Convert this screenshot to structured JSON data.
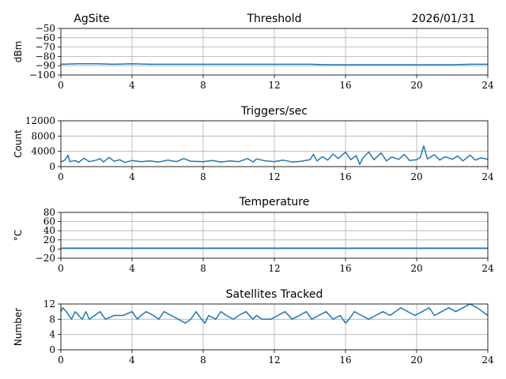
{
  "header": {
    "site": "AgSite",
    "date": "2026/01/31"
  },
  "colors": {
    "series": "#1f77b4",
    "grid": "#b0b0b0"
  },
  "chart_data": [
    {
      "type": "line",
      "title": "Threshold",
      "ylabel": "dBm",
      "xlim": [
        0,
        24
      ],
      "ylim": [
        -100,
        -50
      ],
      "xticks": [
        0,
        4,
        8,
        12,
        16,
        20,
        24
      ],
      "yticks": [
        -100,
        -90,
        -80,
        -70,
        -60,
        -50
      ],
      "ytick_labels": [
        "−100",
        "−90",
        "−80",
        "−70",
        "−60",
        "−50"
      ],
      "grid": true,
      "series": [
        {
          "x": [
            0,
            1,
            2,
            3,
            4,
            5,
            6,
            7,
            8,
            9,
            10,
            11,
            12,
            13,
            14,
            15,
            16,
            17,
            18,
            19,
            20,
            21,
            22,
            23,
            24
          ],
          "values": [
            -88.5,
            -88,
            -88,
            -88.5,
            -88,
            -88.5,
            -88.5,
            -88.5,
            -88.5,
            -88.5,
            -88.5,
            -88.5,
            -88.5,
            -88.5,
            -88.5,
            -89,
            -89,
            -89,
            -89,
            -89,
            -89,
            -89,
            -89,
            -88.5,
            -88.5
          ]
        }
      ]
    },
    {
      "type": "line",
      "title": "Triggers/sec",
      "ylabel": "Count",
      "xlim": [
        0,
        24
      ],
      "ylim": [
        0,
        12000
      ],
      "xticks": [
        0,
        4,
        8,
        12,
        16,
        20,
        24
      ],
      "yticks": [
        0,
        4000,
        8000,
        12000
      ],
      "ytick_labels": [
        "0",
        "4000",
        "8000",
        "12000"
      ],
      "grid": true,
      "series": [
        {
          "x": [
            0,
            0.25,
            0.4,
            0.5,
            0.8,
            1,
            1.3,
            1.6,
            2,
            2.2,
            2.4,
            2.7,
            3,
            3.3,
            3.6,
            4,
            4.5,
            5,
            5.5,
            6,
            6.5,
            6.9,
            7.3,
            8,
            8.5,
            9,
            9.5,
            10,
            10.5,
            10.8,
            11,
            11.5,
            12,
            12.5,
            13,
            13.5,
            14,
            14.2,
            14.4,
            14.7,
            15,
            15.3,
            15.6,
            16,
            16.3,
            16.6,
            16.8,
            17,
            17.3,
            17.6,
            18,
            18.3,
            18.6,
            19,
            19.3,
            19.6,
            20,
            20.2,
            20.4,
            20.6,
            21,
            21.3,
            21.6,
            22,
            22.3,
            22.6,
            23,
            23.3,
            23.6,
            24
          ],
          "values": [
            1200,
            1800,
            3000,
            1300,
            1600,
            1100,
            2200,
            1300,
            1700,
            2100,
            1200,
            2400,
            1400,
            1800,
            1100,
            1600,
            1300,
            1500,
            1200,
            1700,
            1300,
            2100,
            1400,
            1300,
            1600,
            1200,
            1500,
            1300,
            2100,
            1200,
            2000,
            1500,
            1300,
            1700,
            1200,
            1400,
            1800,
            3200,
            1500,
            2600,
            1700,
            3300,
            2100,
            3800,
            1800,
            2900,
            600,
            2400,
            3800,
            1800,
            3600,
            1500,
            2500,
            1900,
            3200,
            1600,
            1800,
            2400,
            5400,
            2000,
            3100,
            1700,
            2600,
            1900,
            2800,
            1500,
            3000,
            1700,
            2300,
            1900
          ]
        }
      ]
    },
    {
      "type": "line",
      "title": "Temperature",
      "ylabel": "°C",
      "xlim": [
        0,
        24
      ],
      "ylim": [
        -20,
        80
      ],
      "xticks": [
        0,
        4,
        8,
        12,
        16,
        20,
        24
      ],
      "yticks": [
        -20,
        0,
        20,
        40,
        60,
        80
      ],
      "ytick_labels": [
        "−20",
        "0",
        "20",
        "40",
        "60",
        "80"
      ],
      "grid": true,
      "series": [
        {
          "x": [
            0,
            24
          ],
          "values": [
            2,
            2
          ]
        }
      ]
    },
    {
      "type": "line",
      "title": "Satellites Tracked",
      "ylabel": "Number",
      "xlim": [
        0,
        24
      ],
      "ylim": [
        0,
        12
      ],
      "xticks": [
        0,
        4,
        8,
        12,
        16,
        20,
        24
      ],
      "yticks": [
        0,
        4,
        8,
        12
      ],
      "ytick_labels": [
        "0",
        "4",
        "8",
        "12"
      ],
      "grid": true,
      "series": [
        {
          "x": [
            0,
            0.1,
            0.3,
            0.45,
            0.6,
            0.8,
            1.0,
            1.2,
            1.4,
            1.6,
            1.9,
            2.2,
            2.5,
            3.0,
            3.5,
            4.0,
            4.3,
            4.5,
            4.8,
            5.2,
            5.5,
            5.8,
            6.2,
            6.6,
            7.0,
            7.3,
            7.6,
            7.9,
            8.1,
            8.3,
            8.7,
            9.0,
            9.3,
            9.7,
            10.0,
            10.4,
            10.8,
            11.0,
            11.3,
            11.8,
            12.2,
            12.6,
            13.0,
            13.4,
            13.8,
            14.1,
            14.5,
            14.9,
            15.3,
            15.7,
            16.0,
            16.2,
            16.5,
            16.9,
            17.3,
            17.7,
            18.1,
            18.5,
            18.8,
            19.1,
            19.5,
            19.9,
            20.3,
            20.7,
            21.0,
            21.4,
            21.8,
            22.2,
            22.6,
            23.0,
            23.4,
            23.7,
            24.0
          ],
          "values": [
            10,
            11,
            10,
            9,
            8,
            10,
            9,
            8,
            10,
            8,
            9,
            10,
            8,
            9,
            9,
            10,
            8,
            9,
            10,
            9,
            8,
            10,
            9,
            8,
            7,
            8,
            10,
            8,
            7,
            9,
            8,
            10,
            9,
            8,
            9,
            10,
            8,
            9,
            8,
            8,
            9,
            10,
            8,
            9,
            10,
            8,
            9,
            10,
            8,
            9,
            7,
            8,
            10,
            9,
            8,
            9,
            10,
            9,
            10,
            11,
            10,
            9,
            10,
            11,
            9,
            10,
            11,
            10,
            11,
            12,
            11,
            10,
            9
          ]
        }
      ]
    }
  ]
}
